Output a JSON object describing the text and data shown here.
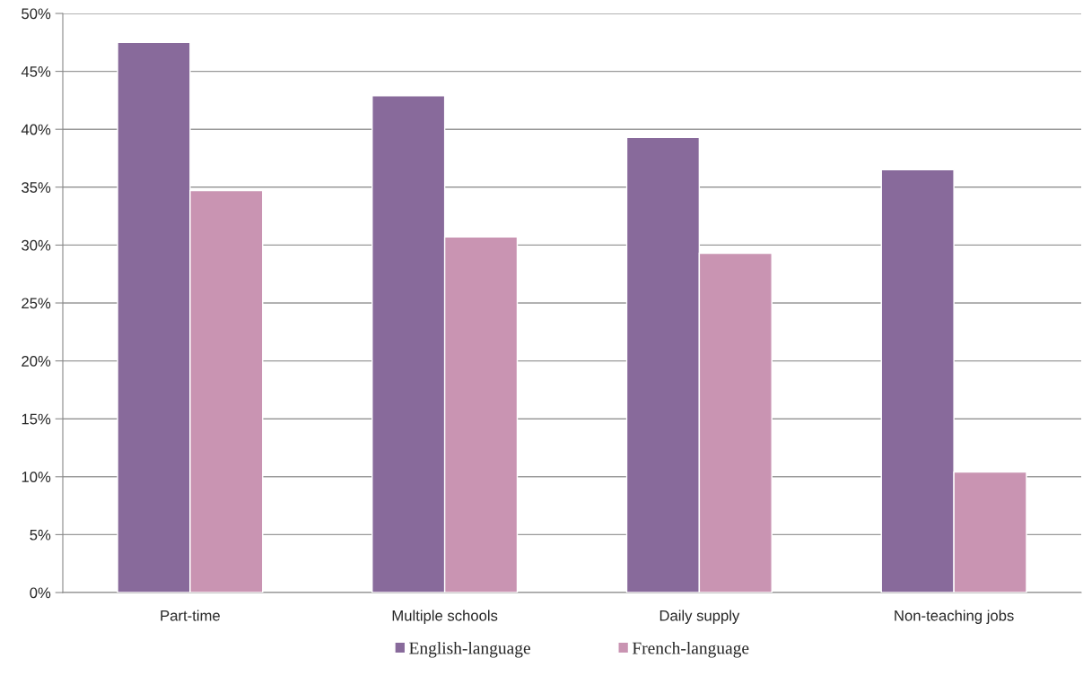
{
  "chart_data": {
    "type": "bar",
    "categories": [
      "Part-time",
      "Multiple schools",
      "Daily supply",
      "Non-teaching jobs"
    ],
    "series": [
      {
        "name": "English-language",
        "color": "#886a9b",
        "values": [
          47.5,
          42.9,
          39.3,
          36.5
        ]
      },
      {
        "name": "French-language",
        "color": "#c994b2",
        "values": [
          34.7,
          30.7,
          29.3,
          10.4
        ]
      }
    ],
    "ylim": [
      0,
      50
    ],
    "yticks": [
      {
        "value": 0,
        "label": "0%"
      },
      {
        "value": 5,
        "label": "5%"
      },
      {
        "value": 10,
        "label": "10%"
      },
      {
        "value": 15,
        "label": "15%"
      },
      {
        "value": 20,
        "label": "20%"
      },
      {
        "value": 25,
        "label": "25%"
      },
      {
        "value": 30,
        "label": "30%"
      },
      {
        "value": 35,
        "label": "35%"
      },
      {
        "value": 40,
        "label": "40%"
      },
      {
        "value": 45,
        "label": "45%"
      },
      {
        "value": 50,
        "label": "50%"
      }
    ],
    "grid": "y",
    "legend": "bottom"
  }
}
